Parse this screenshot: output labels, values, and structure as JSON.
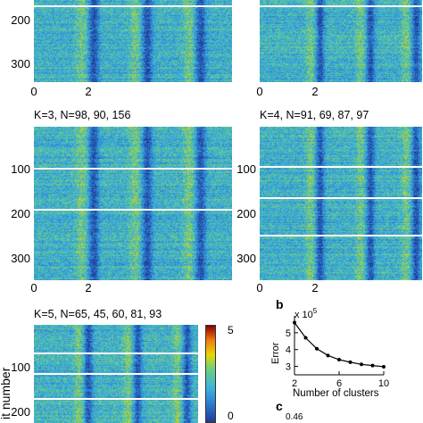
{
  "panels": [
    {
      "id": "p-top-left",
      "title": "",
      "yticks": [
        "200",
        "300"
      ],
      "xticks": [
        "0",
        "2"
      ],
      "clusters": []
    },
    {
      "id": "p-top-right",
      "title": "",
      "yticks": [],
      "xticks": [
        "0",
        "2"
      ],
      "clusters": []
    },
    {
      "id": "p-k3",
      "title": "K=3, N=98, 90, 156",
      "yticks": [
        "100",
        "200",
        "300"
      ],
      "xticks": [
        "0",
        "2"
      ],
      "clusters": [
        98,
        90,
        156
      ]
    },
    {
      "id": "p-k4",
      "title": "K=4, N=91, 69, 87, 97",
      "yticks": [
        "100",
        "200",
        "300"
      ],
      "xticks": [
        "0",
        "2"
      ],
      "clusters": [
        91,
        69,
        87,
        97
      ]
    },
    {
      "id": "p-k5",
      "title": "K=5, N=65, 45, 60, 81, 93",
      "yticks": [
        "100",
        "200"
      ],
      "xticks": [],
      "clusters": [
        65,
        45,
        60,
        81,
        93
      ]
    }
  ],
  "ylabel_partial": "it number",
  "colorbar": {
    "max": "5",
    "min": "0"
  },
  "panel_b": {
    "letter": "b",
    "chart_data": {
      "type": "line",
      "xlabel": "Number of clusters",
      "ylabel": "Error",
      "y_multiplier": "x 10",
      "y_exponent": "5",
      "xticks": [
        "2",
        "6",
        "10"
      ],
      "yticks": [
        "5",
        "4",
        "3"
      ],
      "x": [
        2,
        3,
        4,
        5,
        6,
        7,
        8,
        9,
        10
      ],
      "values": [
        5.6,
        4.7,
        4.05,
        3.65,
        3.4,
        3.25,
        3.12,
        3.05,
        2.98
      ],
      "xlim": [
        2,
        10
      ],
      "ylim": [
        2.5,
        6
      ]
    }
  },
  "panel_c": {
    "letter": "c",
    "tick": "0.46"
  },
  "colors": {
    "low": "#1e3a96",
    "mid": "#3ab2e0",
    "high": "#e8d800",
    "max": "#8b0000"
  }
}
